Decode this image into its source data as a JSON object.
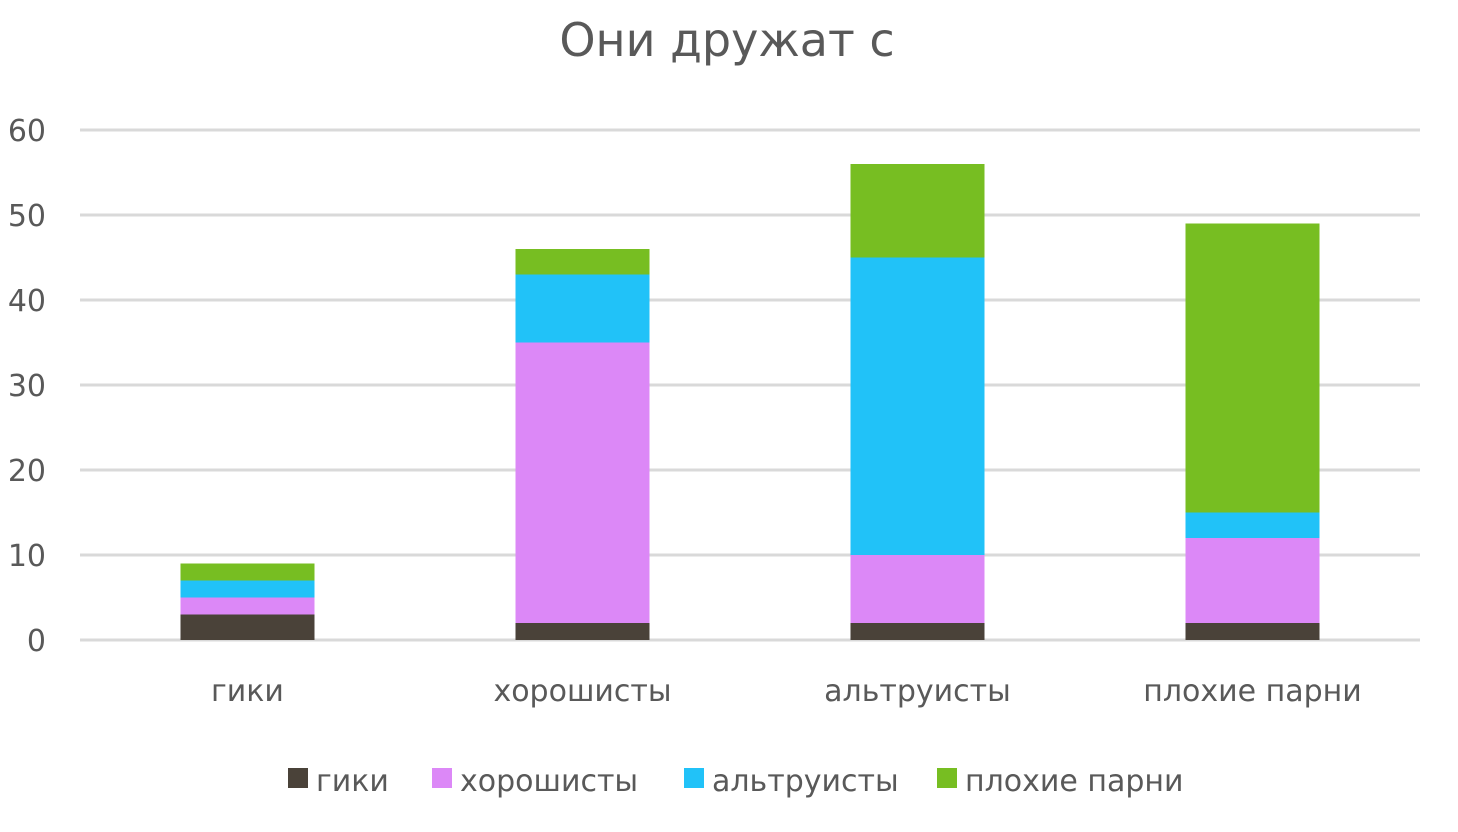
{
  "chart_data": {
    "type": "bar",
    "stacked": true,
    "title": "Они дружат с",
    "xlabel": "",
    "ylabel": "",
    "categories": [
      "гики",
      "хорошисты",
      "альтруисты",
      "плохие парни"
    ],
    "series": [
      {
        "name": "гики",
        "color": "#4a4239",
        "values": [
          3,
          2,
          2,
          2
        ]
      },
      {
        "name": "хорошисты",
        "color": "#dc88f7",
        "values": [
          2,
          33,
          8,
          10
        ]
      },
      {
        "name": "альтруисты",
        "color": "#21c2f8",
        "values": [
          2,
          8,
          35,
          3
        ]
      },
      {
        "name": "плохие парни",
        "color": "#77be22",
        "values": [
          2,
          3,
          11,
          34
        ]
      }
    ],
    "ylim": [
      0,
      60
    ],
    "yticks": [
      0,
      10,
      20,
      30,
      40,
      50,
      60
    ],
    "grid": true,
    "legend_position": "bottom"
  }
}
